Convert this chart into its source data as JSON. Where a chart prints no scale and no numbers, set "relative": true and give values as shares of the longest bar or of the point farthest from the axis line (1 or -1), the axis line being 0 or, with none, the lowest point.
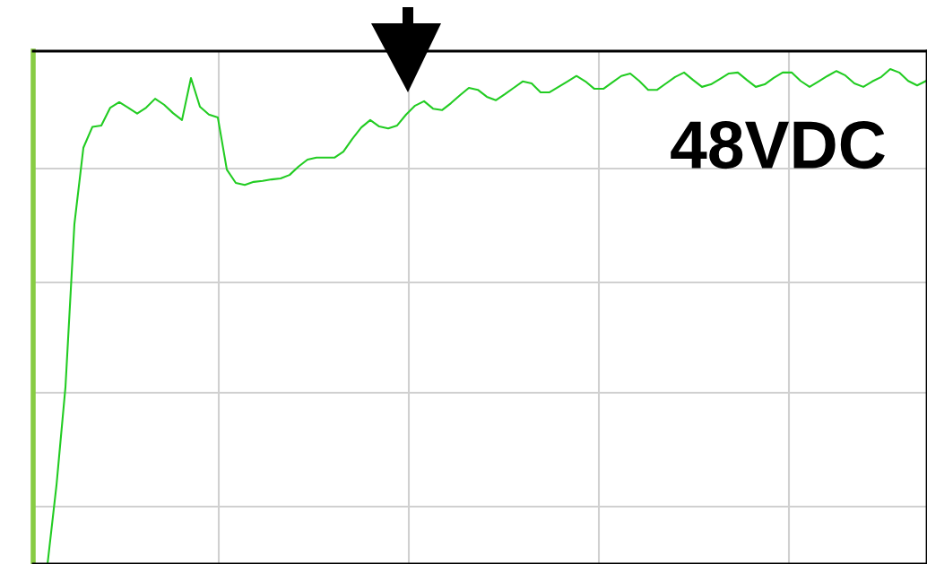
{
  "chart_data": {
    "type": "line",
    "relative": true,
    "grid": true,
    "tick_labels": false,
    "marker": "none",
    "line_style": "solid",
    "annotations": [
      "48VDC"
    ],
    "categories": [
      null,
      null,
      null,
      null,
      null,
      null,
      null,
      null,
      null,
      null,
      null,
      null,
      null,
      null,
      null,
      null,
      null,
      null,
      null,
      null,
      null,
      null,
      null,
      null,
      null,
      null,
      null,
      null,
      null,
      null,
      null,
      null,
      null,
      null,
      null,
      null,
      null,
      null,
      null,
      null,
      null,
      null,
      null,
      null,
      null,
      null,
      null,
      null,
      null,
      null,
      null,
      null,
      null,
      null,
      null,
      null,
      null,
      null,
      null,
      null,
      null,
      null,
      null,
      null,
      null,
      null,
      null,
      null,
      null,
      null,
      null,
      null,
      null,
      null,
      null,
      null,
      null,
      null,
      null,
      null,
      null,
      null,
      null,
      null,
      null,
      null,
      null,
      null,
      null,
      null,
      null,
      null,
      null,
      null,
      null,
      null,
      null,
      null,
      null
    ],
    "series": [
      {
        "color": "#22cc22",
        "values": [
          0,
          0.159,
          0.357,
          0.687,
          0.841,
          0.883,
          0.886,
          0.922,
          0.933,
          0.922,
          0.91,
          0.922,
          0.94,
          0.928,
          0.911,
          0.897,
          0.982,
          0.924,
          0.908,
          0.902,
          0.797,
          0.77,
          0.766,
          0.772,
          0.774,
          0.777,
          0.779,
          0.786,
          0.803,
          0.817,
          0.821,
          0.821,
          0.821,
          0.833,
          0.859,
          0.882,
          0.897,
          0.884,
          0.88,
          0.886,
          0.908,
          0.926,
          0.935,
          0.92,
          0.917,
          0.931,
          0.947,
          0.962,
          0.958,
          0.944,
          0.937,
          0.949,
          0.962,
          0.975,
          0.971,
          0.953,
          0.953,
          0.964,
          0.975,
          0.986,
          0.975,
          0.96,
          0.96,
          0.973,
          0.986,
          0.991,
          0.976,
          0.958,
          0.958,
          0.971,
          0.984,
          0.993,
          0.978,
          0.964,
          0.969,
          0.98,
          0.991,
          0.993,
          0.978,
          0.964,
          0.969,
          0.982,
          0.993,
          0.993,
          0.976,
          0.964,
          0.975,
          0.986,
          0.996,
          0.987,
          0.971,
          0.964,
          0.975,
          0.984,
          1.0,
          0.993,
          0.976,
          0.967,
          0.976
        ]
      }
    ]
  }
}
